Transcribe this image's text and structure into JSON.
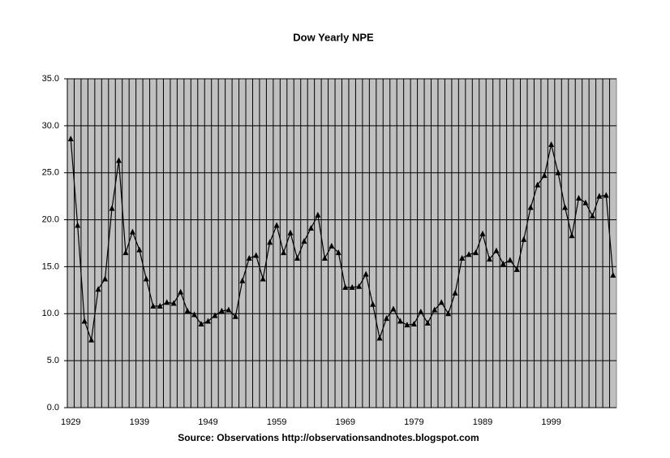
{
  "chart_data": {
    "type": "line",
    "title": "Dow Yearly NPE",
    "x_label": "Source: Observations http://observationsandnotes.blogspot.com",
    "categories": [
      "1929",
      null,
      null,
      null,
      null,
      null,
      null,
      null,
      null,
      null,
      "1939",
      null,
      null,
      null,
      null,
      null,
      null,
      null,
      null,
      null,
      "1949",
      null,
      null,
      null,
      null,
      null,
      null,
      null,
      null,
      null,
      "1959",
      null,
      null,
      null,
      null,
      null,
      null,
      null,
      null,
      null,
      "1969",
      null,
      null,
      null,
      null,
      null,
      null,
      null,
      null,
      null,
      "1979",
      null,
      null,
      null,
      null,
      null,
      null,
      null,
      null,
      null,
      "1989",
      null,
      null,
      null,
      null,
      null,
      null,
      null,
      null,
      null,
      "1999",
      null,
      null,
      null,
      null,
      null,
      null,
      null,
      null,
      null
    ],
    "values": [
      28.6,
      19.4,
      9.2,
      7.2,
      12.6,
      13.7,
      21.2,
      26.3,
      16.5,
      18.7,
      16.8,
      13.7,
      10.8,
      10.8,
      11.2,
      11.1,
      12.3,
      10.3,
      9.9,
      8.9,
      9.2,
      9.8,
      10.3,
      10.4,
      9.7,
      13.5,
      15.9,
      16.2,
      13.7,
      17.6,
      19.4,
      16.5,
      18.6,
      15.9,
      17.7,
      19.1,
      20.5,
      15.9,
      17.2,
      16.5,
      12.8,
      12.8,
      12.9,
      14.2,
      11.0,
      7.4,
      9.5,
      10.5,
      9.2,
      8.8,
      8.9,
      10.2,
      9.0,
      10.4,
      11.2,
      10.0,
      12.2,
      15.9,
      16.3,
      16.5,
      18.5,
      15.8,
      16.7,
      15.3,
      15.7,
      14.7,
      17.9,
      21.3,
      23.7,
      24.7,
      28.0,
      25.0,
      21.3,
      18.3,
      22.3,
      21.8,
      20.4,
      22.5,
      22.6,
      14.1
    ],
    "color": "#000000",
    "plot_background": "#c0c0c0",
    "ylim": [
      0,
      35
    ],
    "yticks": [
      {
        "value": 0,
        "label": "0.0"
      },
      {
        "value": 5,
        "label": "5.0"
      },
      {
        "value": 10,
        "label": "10.0"
      },
      {
        "value": 15,
        "label": "15.0"
      },
      {
        "value": 20,
        "label": "20.0"
      },
      {
        "value": 25,
        "label": "25.0"
      },
      {
        "value": 30,
        "label": "30.0"
      },
      {
        "value": 35,
        "label": "35.0"
      }
    ],
    "grid": true
  }
}
